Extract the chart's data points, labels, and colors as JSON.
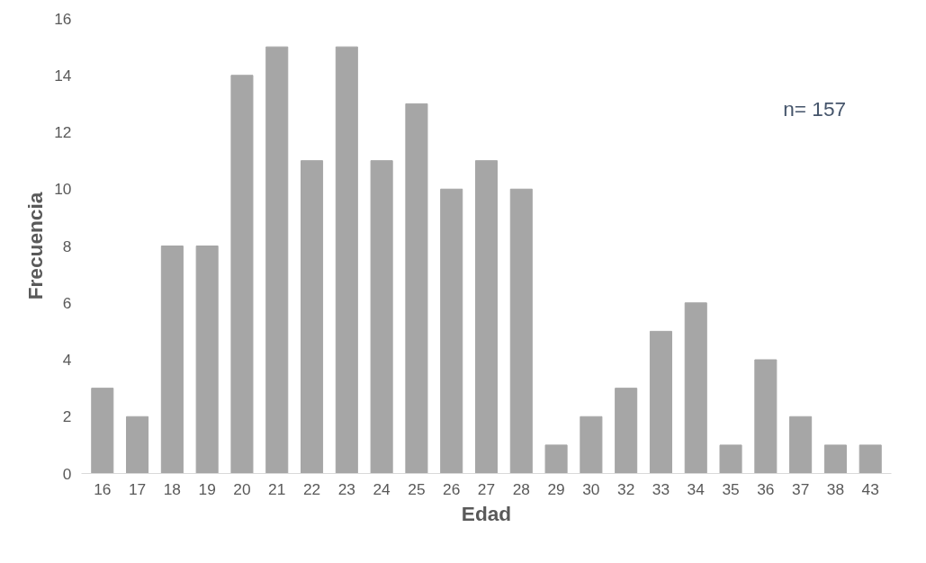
{
  "chart_data": {
    "type": "bar",
    "xlabel": "Edad",
    "ylabel": "Frecuencia",
    "categories": [
      "16",
      "17",
      "18",
      "19",
      "20",
      "21",
      "22",
      "23",
      "24",
      "25",
      "26",
      "27",
      "28",
      "29",
      "30",
      "32",
      "33",
      "34",
      "35",
      "36",
      "37",
      "38",
      "43"
    ],
    "values": [
      3,
      2,
      8,
      8,
      14,
      15,
      11,
      15,
      11,
      13,
      10,
      11,
      10,
      1,
      2,
      3,
      5,
      6,
      1,
      4,
      2,
      1,
      1
    ],
    "color": "#a6a6a6",
    "ylim": [
      0,
      16
    ],
    "yticks": [
      0,
      2,
      4,
      6,
      8,
      10,
      12,
      14,
      16
    ],
    "grid": false,
    "annotations": [
      "n= 157"
    ]
  }
}
